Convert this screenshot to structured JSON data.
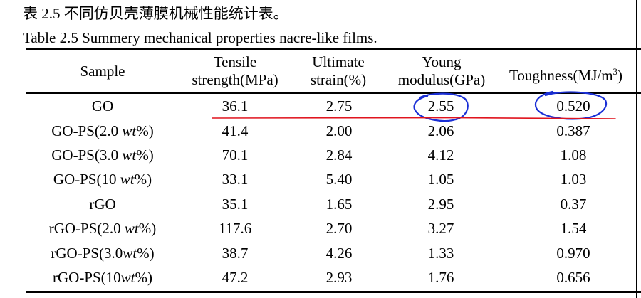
{
  "caption": {
    "chinese": "表 2.5  不同仿贝壳薄膜机械性能统计表。",
    "english": "Table 2.5 Summery mechanical properties nacre-like films."
  },
  "headers": {
    "sample": "Sample",
    "tensile_1": "Tensile",
    "tensile_2": "strength(MPa)",
    "ultimate_1": "Ultimate",
    "ultimate_2": "strain(%)",
    "young_1": "Young",
    "young_2": "modulus(GPa)",
    "toughness": "Toughness(MJ/m",
    "toughness_sup": "3",
    "toughness_end": ")"
  },
  "rows": [
    {
      "sample": "GO",
      "unit": "",
      "suffix": "",
      "tensile": "36.1",
      "strain": "2.75",
      "modulus": "2.55",
      "toughness": "0.520"
    },
    {
      "sample": "GO-PS(2.0 ",
      "unit": "wt",
      "suffix": "%)",
      "tensile": "41.4",
      "strain": "2.00",
      "modulus": "2.06",
      "toughness": "0.387"
    },
    {
      "sample": "GO-PS(3.0 ",
      "unit": "wt",
      "suffix": "%)",
      "tensile": "70.1",
      "strain": "2.84",
      "modulus": "4.12",
      "toughness": "1.08"
    },
    {
      "sample": "GO-PS(10 ",
      "unit": "wt",
      "suffix": "%)",
      "tensile": "33.1",
      "strain": "5.40",
      "modulus": "1.05",
      "toughness": "1.03"
    },
    {
      "sample": "rGO",
      "unit": "",
      "suffix": "",
      "tensile": "35.1",
      "strain": "1.65",
      "modulus": "2.95",
      "toughness": "0.37"
    },
    {
      "sample": "rGO-PS(2.0 ",
      "unit": "wt",
      "suffix": "%)",
      "tensile": "117.6",
      "strain": "2.70",
      "modulus": "3.27",
      "toughness": "1.54"
    },
    {
      "sample": "rGO-PS(3.0",
      "unit": "wt",
      "suffix": "%)",
      "tensile": "38.7",
      "strain": "4.26",
      "modulus": "1.33",
      "toughness": "0.970"
    },
    {
      "sample": "rGO-PS(10",
      "unit": "wt",
      "suffix": "%)",
      "tensile": "47.2",
      "strain": "2.93",
      "modulus": "1.76",
      "toughness": "0.656"
    }
  ],
  "annotation_colors": {
    "circle": "#1a2fd6",
    "underline": "#e0141e"
  }
}
